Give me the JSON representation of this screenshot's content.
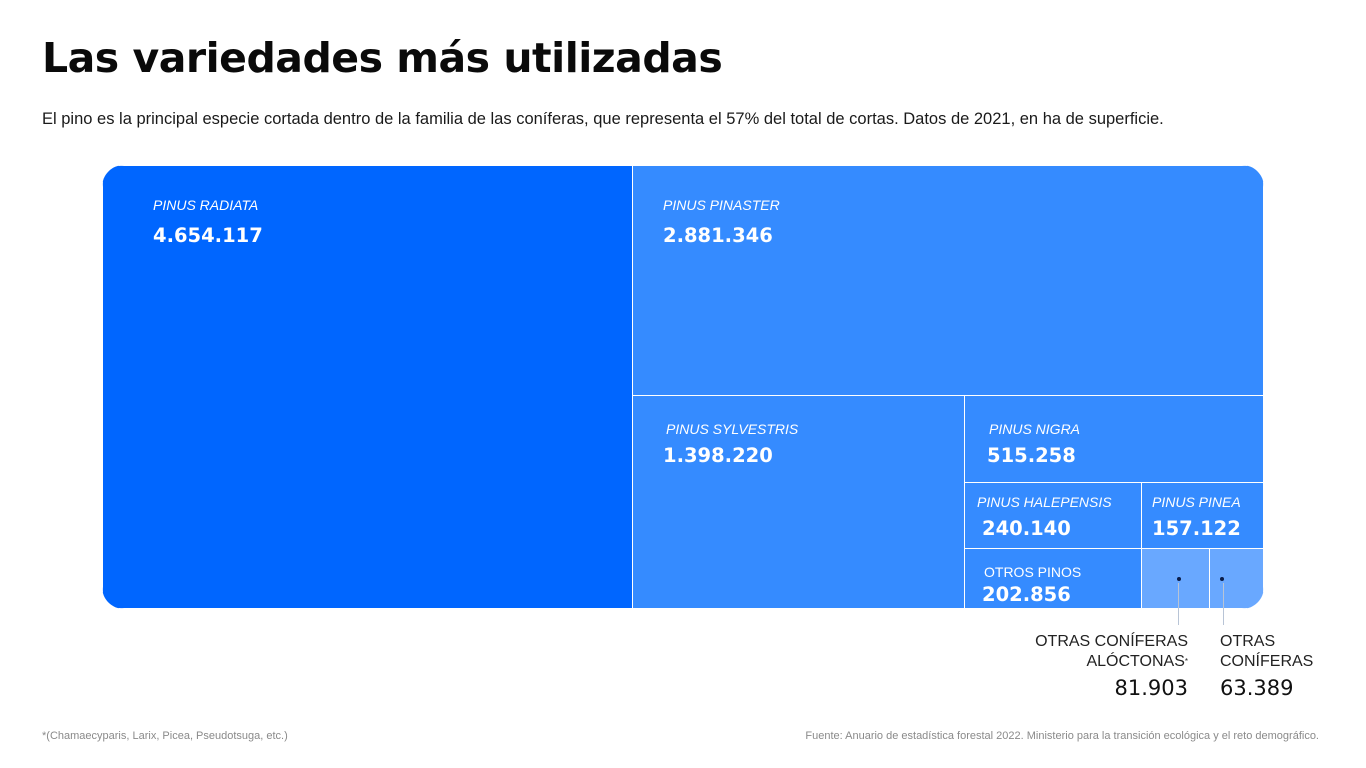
{
  "title": "Las variedades más utilizadas",
  "subtitle": "El pino es la principal especie cortada dentro de la familia de las coníferas, que representa el 57% del total de cortas. Datos de 2021, en ha de superficie.",
  "footnote": "*(Chamaecyparis, Larix, Picea, Pseudotsuga, etc.)",
  "source": "Fuente: Anuario de estadística forestal 2022. Ministerio para la transición ecológica y el reto demográfico.",
  "colors": {
    "primary": "#0066ff",
    "secondary": "#358bff",
    "light": "#69a8ff",
    "border": "#ffffff"
  },
  "chart_data": {
    "type": "treemap",
    "unit": "ha",
    "items": [
      {
        "name": "Pinus radiata",
        "value": 4654117,
        "value_label": "4.654.117"
      },
      {
        "name": "Pinus pinaster",
        "value": 2881346,
        "value_label": "2.881.346"
      },
      {
        "name": "Pinus sylvestris",
        "value": 1398220,
        "value_label": "1.398.220"
      },
      {
        "name": "Pinus nigra",
        "value": 515258,
        "value_label": "515.258"
      },
      {
        "name": "Pinus halepensis",
        "value": 240140,
        "value_label": "240.140"
      },
      {
        "name": "Pinus pinea",
        "value": 157122,
        "value_label": "157.122"
      },
      {
        "name": "Otros pinos",
        "value": 202856,
        "value_label": "202.856"
      },
      {
        "name": "Otras coníferas alóctonas",
        "value": 81903,
        "value_label": "81.903",
        "footnote_mark": "*"
      },
      {
        "name": "Otras coníferas",
        "value": 63389,
        "value_label": "63.389"
      }
    ],
    "external_labels": {
      "aloctonas_line1": "OTRAS CONÍFERAS",
      "aloctonas_line2": "ALÓCTONAS",
      "aloctonas_mark": "*",
      "otras_line1": "OTRAS",
      "otras_line2": "CONÍFERAS"
    }
  }
}
